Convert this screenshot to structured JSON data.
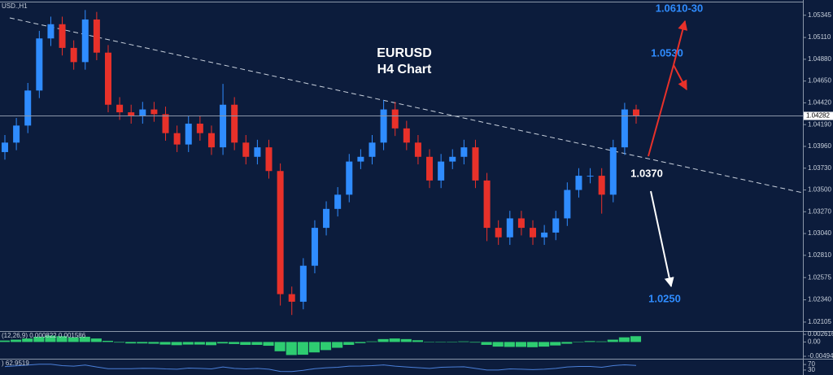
{
  "chart_data": [
    {
      "type": "candlestick",
      "title": "USD.,H1",
      "annotations": [
        "EURUSD",
        "H4 Chart",
        "1.0610-30",
        "1.0530",
        "1.0370",
        "1.0250"
      ],
      "open": [
        1.039,
        1.04,
        1.0418,
        1.0455,
        1.051,
        1.0525,
        1.05,
        1.0485,
        1.053,
        1.0495,
        1.044,
        1.0432,
        1.0428,
        1.0435,
        1.043,
        1.041,
        1.0398,
        1.042,
        1.041,
        1.0395,
        1.044,
        1.04,
        1.0385,
        1.0395,
        1.037,
        1.024,
        1.0232,
        1.027,
        1.031,
        1.033,
        1.0345,
        1.038,
        1.0385,
        1.04,
        1.0435,
        1.0415,
        1.04,
        1.0385,
        1.036,
        1.038,
        1.0385,
        1.0395,
        1.036,
        1.031,
        1.03,
        1.032,
        1.031,
        1.03,
        1.0305,
        1.032,
        1.035,
        1.0365,
        1.0365,
        1.0345,
        1.0395,
        1.0435
      ],
      "high": [
        1.0408,
        1.0426,
        1.0463,
        1.0518,
        1.0533,
        1.0533,
        1.0508,
        1.054,
        1.0538,
        1.0503,
        1.0448,
        1.044,
        1.0443,
        1.0443,
        1.0438,
        1.0418,
        1.0428,
        1.0428,
        1.0418,
        1.0462,
        1.0448,
        1.0408,
        1.0403,
        1.0403,
        1.0378,
        1.0248,
        1.0278,
        1.0318,
        1.0338,
        1.0353,
        1.0388,
        1.0393,
        1.0408,
        1.0445,
        1.0443,
        1.0423,
        1.0408,
        1.0393,
        1.0388,
        1.0393,
        1.0403,
        1.0403,
        1.0368,
        1.0318,
        1.0328,
        1.0328,
        1.0318,
        1.0313,
        1.0328,
        1.0358,
        1.0373,
        1.0373,
        1.0373,
        1.0403,
        1.0442,
        1.044
      ],
      "low": [
        1.0382,
        1.0392,
        1.041,
        1.0447,
        1.0502,
        1.0492,
        1.0477,
        1.0477,
        1.0487,
        1.0432,
        1.0424,
        1.042,
        1.042,
        1.0422,
        1.0402,
        1.039,
        1.039,
        1.0402,
        1.0387,
        1.0387,
        1.0392,
        1.0377,
        1.0377,
        1.0362,
        1.0228,
        1.0218,
        1.0224,
        1.0262,
        1.0302,
        1.0322,
        1.0337,
        1.0372,
        1.0377,
        1.0392,
        1.0407,
        1.0392,
        1.0377,
        1.0352,
        1.0352,
        1.0372,
        1.0377,
        1.0352,
        1.0296,
        1.0292,
        1.0292,
        1.0302,
        1.0292,
        1.0292,
        1.0297,
        1.0312,
        1.0342,
        1.0357,
        1.0325,
        1.0337,
        1.0387,
        1.042
      ],
      "close": [
        1.04,
        1.0418,
        1.0455,
        1.051,
        1.0525,
        1.05,
        1.0485,
        1.053,
        1.0495,
        1.044,
        1.0432,
        1.0428,
        1.0435,
        1.043,
        1.041,
        1.0398,
        1.042,
        1.041,
        1.0395,
        1.044,
        1.04,
        1.0385,
        1.0395,
        1.037,
        1.024,
        1.0232,
        1.027,
        1.031,
        1.033,
        1.0345,
        1.038,
        1.0385,
        1.04,
        1.0435,
        1.0415,
        1.04,
        1.0385,
        1.036,
        1.038,
        1.0385,
        1.0395,
        1.036,
        1.031,
        1.03,
        1.032,
        1.031,
        1.03,
        1.0305,
        1.032,
        1.035,
        1.0365,
        1.0365,
        1.0345,
        1.0395,
        1.0435,
        1.0428
      ],
      "up_color": "#2f8cff",
      "down_color": "#e8312a",
      "ylim": [
        1.0201,
        1.0548
      ],
      "yticks": [
        {
          "value": 1.05345,
          "label": "1.05345"
        },
        {
          "value": 1.0511,
          "label": "1.05110"
        },
        {
          "value": 1.0488,
          "label": "1.04880"
        },
        {
          "value": 1.0465,
          "label": "1.04650"
        },
        {
          "value": 1.0442,
          "label": "1.04420"
        },
        {
          "value": 1.0419,
          "label": "1.04190"
        },
        {
          "value": 1.0396,
          "label": "1.03960"
        },
        {
          "value": 1.0373,
          "label": "1.03730"
        },
        {
          "value": 1.035,
          "label": "1.03500"
        },
        {
          "value": 1.0327,
          "label": "1.03270"
        },
        {
          "value": 1.0304,
          "label": "1.03040"
        },
        {
          "value": 1.0281,
          "label": "1.02810"
        },
        {
          "value": 1.02575,
          "label": "1.02575"
        },
        {
          "value": 1.0234,
          "label": "1.02340"
        },
        {
          "value": 1.02105,
          "label": "1.02105"
        }
      ],
      "last_price": 1.04282
    },
    {
      "type": "bar",
      "title": "(12,26,9) 0.000822 0.001586",
      "values": [
        0.0005,
        0.0008,
        0.0012,
        0.0018,
        0.0022,
        0.002,
        0.0016,
        0.0018,
        0.0012,
        0.0004,
        -0.0002,
        -0.0005,
        -0.0005,
        -0.0006,
        -0.0009,
        -0.0011,
        -0.0009,
        -0.0009,
        -0.0011,
        -0.0005,
        -0.0007,
        -0.001,
        -0.001,
        -0.0013,
        -0.0032,
        -0.0045,
        -0.0044,
        -0.0036,
        -0.0028,
        -0.002,
        -0.001,
        -0.0004,
        0.0002,
        0.001,
        0.0012,
        0.001,
        0.0006,
        0.0001,
        0.0,
        0.0,
        0.0002,
        -0.0002,
        -0.001,
        -0.0016,
        -0.0017,
        -0.0017,
        -0.0018,
        -0.0016,
        -0.0012,
        -0.0006,
        -0.0001,
        0.0003,
        0.0002,
        0.0008,
        0.0016,
        0.002
      ],
      "color": "#2ecc71",
      "ylim": [
        -0.0055,
        0.0032
      ],
      "yticks": [
        0.002616,
        {
          "value": 0,
          "label": "0.00"
        },
        -0.004943
      ]
    },
    {
      "type": "line",
      "title": ") 62.9519",
      "values": [
        55,
        60,
        66,
        72,
        72,
        62,
        58,
        66,
        52,
        40,
        40,
        40,
        43,
        42,
        38,
        36,
        44,
        42,
        38,
        52,
        42,
        38,
        42,
        36,
        20,
        19,
        28,
        40,
        46,
        50,
        58,
        59,
        62,
        67,
        58,
        52,
        47,
        42,
        50,
        52,
        54,
        42,
        30,
        30,
        38,
        36,
        33,
        36,
        42,
        52,
        56,
        56,
        50,
        62,
        68,
        62.9519
      ],
      "color": "#4a7fd8",
      "ylim": [
        0,
        100
      ],
      "yticks": [
        70,
        30
      ]
    }
  ]
}
